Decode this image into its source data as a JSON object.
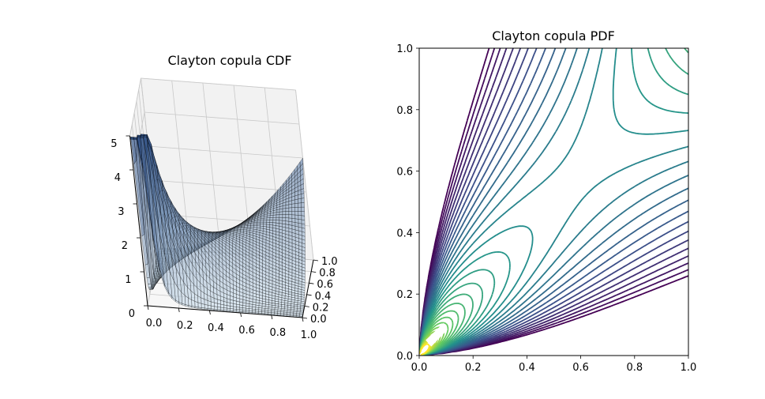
{
  "chart_data": [
    {
      "type": "surface",
      "title": "Clayton copula CDF",
      "xlabel": "",
      "ylabel": "",
      "zlabel": "",
      "x_ticks": [
        "0.0",
        "0.2",
        "0.4",
        "0.6",
        "0.8",
        "1.0"
      ],
      "y_ticks": [
        "0.0",
        "0.2",
        "0.4",
        "0.6",
        "0.8",
        "1.0"
      ],
      "z_ticks": [
        "0",
        "1",
        "2",
        "3",
        "4",
        "5"
      ],
      "xlim": [
        0,
        1
      ],
      "ylim": [
        0,
        1
      ],
      "zlim": [
        0,
        5
      ],
      "grid": true,
      "colormap": "Blues_dark",
      "edge_color": "#000000",
      "theta": 2,
      "grid_points": 50
    },
    {
      "type": "contour",
      "title": "Clayton copula PDF",
      "xlabel": "",
      "ylabel": "",
      "x_ticks": [
        "0.0",
        "0.2",
        "0.4",
        "0.6",
        "0.8",
        "1.0"
      ],
      "y_ticks": [
        "0.0",
        "0.2",
        "0.4",
        "0.6",
        "0.8",
        "1.0"
      ],
      "xlim": [
        0,
        1
      ],
      "ylim": [
        0,
        1
      ],
      "colormap": "viridis",
      "theta": 2,
      "levels": 30,
      "grid": false
    }
  ]
}
